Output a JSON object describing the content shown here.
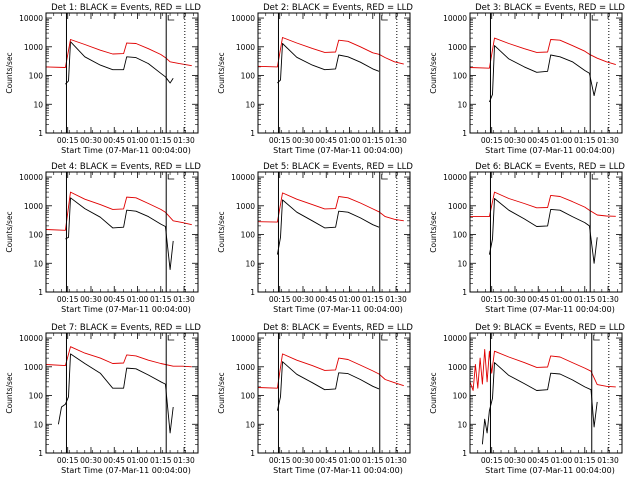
{
  "figure": {
    "shared": {
      "ylabel": "Counts/sec",
      "xlabel": "Start Time (07-Mar-11 00:04:00)",
      "xticklabels": [
        "00:15",
        "00:30",
        "00:45",
        "01:00",
        "01:15",
        "01:30"
      ],
      "yticklabels": [
        "1",
        "10",
        "100",
        "1000",
        "10000"
      ],
      "colors": {
        "events": "#000000",
        "lld": "#e00000",
        "axes": "#000000"
      }
    }
  },
  "chart_data": [
    {
      "type": "line",
      "panel": 1,
      "title": "Det 1: BLACK = Events, RED = LLD",
      "xlim_minutes_after_start": [
        0,
        98
      ],
      "ylim": [
        1,
        15000
      ],
      "yscale": "log",
      "grid": false,
      "vertical_lines_minutes": [
        13.2,
        77.5
      ],
      "dotted_lines_minutes": [
        89.5
      ],
      "series": [
        {
          "name": "Events",
          "color": "#000000",
          "x": [
            12.5,
            14.5,
            15.8,
            25,
            35,
            43,
            50,
            52,
            58,
            66,
            74,
            77,
            80,
            82
          ],
          "y": [
            50,
            65,
            1500,
            450,
            230,
            160,
            160,
            450,
            420,
            260,
            120,
            90,
            55,
            80
          ]
        },
        {
          "name": "LLD",
          "color": "#e00000",
          "x": [
            0,
            12.5,
            15.8,
            25,
            35,
            43,
            50,
            52,
            58,
            66,
            74,
            77,
            80,
            86,
            94
          ],
          "y": [
            200,
            190,
            1800,
            1200,
            760,
            560,
            580,
            1350,
            1300,
            860,
            540,
            420,
            300,
            260,
            220
          ]
        }
      ]
    },
    {
      "type": "line",
      "panel": 2,
      "title": "Det 2: BLACK = Events, RED = LLD",
      "xlim_minutes_after_start": [
        0,
        98
      ],
      "ylim": [
        1,
        15000
      ],
      "yscale": "log",
      "grid": false,
      "vertical_lines_minutes": [
        13.2,
        78.5
      ],
      "dotted_lines_minutes": [
        89.5
      ],
      "series": [
        {
          "name": "Events",
          "color": "#000000",
          "x": [
            12.5,
            14.5,
            15.8,
            25,
            35,
            43,
            50,
            52,
            58,
            66,
            74,
            78
          ],
          "y": [
            55,
            70,
            1300,
            430,
            230,
            160,
            170,
            520,
            450,
            290,
            170,
            140
          ]
        },
        {
          "name": "LLD",
          "color": "#e00000",
          "x": [
            0,
            12.5,
            15.8,
            25,
            35,
            43,
            50,
            52,
            58,
            66,
            74,
            78,
            82,
            88,
            94
          ],
          "y": [
            210,
            200,
            2100,
            1350,
            880,
            640,
            660,
            1700,
            1550,
            1000,
            620,
            550,
            420,
            300,
            250
          ]
        }
      ]
    },
    {
      "type": "line",
      "panel": 3,
      "title": "Det 3: BLACK = Events, RED = LLD",
      "xlim_minutes_after_start": [
        0,
        98
      ],
      "ylim": [
        1,
        15000
      ],
      "yscale": "log",
      "grid": false,
      "vertical_lines_minutes": [
        13.2,
        77.5
      ],
      "dotted_lines_minutes": [
        89.5
      ],
      "series": [
        {
          "name": "Events",
          "color": "#000000",
          "x": [
            12.5,
            14.5,
            15.8,
            25,
            35,
            43,
            50,
            52,
            58,
            66,
            74,
            77,
            80,
            82
          ],
          "y": [
            12,
            22,
            1100,
            380,
            200,
            130,
            140,
            520,
            450,
            300,
            150,
            120,
            20,
            60
          ]
        },
        {
          "name": "LLD",
          "color": "#e00000",
          "x": [
            0,
            12.5,
            15.8,
            25,
            35,
            43,
            50,
            52,
            58,
            66,
            74,
            77,
            82,
            88,
            94
          ],
          "y": [
            190,
            180,
            2000,
            1300,
            860,
            640,
            660,
            1800,
            1700,
            1100,
            700,
            550,
            400,
            300,
            240
          ]
        }
      ]
    },
    {
      "type": "line",
      "panel": 4,
      "title": "Det 4: BLACK = Events, RED = LLD",
      "xlim_minutes_after_start": [
        0,
        98
      ],
      "ylim": [
        1,
        15000
      ],
      "yscale": "log",
      "grid": false,
      "vertical_lines_minutes": [
        13.2,
        77.5
      ],
      "dotted_lines_minutes": [
        89.5
      ],
      "series": [
        {
          "name": "Events",
          "color": "#000000",
          "x": [
            12.5,
            14.5,
            15.8,
            25,
            35,
            43,
            50,
            52,
            58,
            66,
            74,
            77,
            80,
            82
          ],
          "y": [
            70,
            80,
            1900,
            800,
            400,
            170,
            180,
            700,
            650,
            420,
            230,
            190,
            6,
            60
          ]
        },
        {
          "name": "LLD",
          "color": "#e00000",
          "x": [
            0,
            12.5,
            15.8,
            25,
            35,
            43,
            50,
            52,
            58,
            66,
            74,
            77,
            82,
            88,
            94
          ],
          "y": [
            150,
            140,
            3000,
            1700,
            1100,
            750,
            780,
            2000,
            1900,
            1200,
            750,
            600,
            300,
            260,
            220
          ]
        }
      ]
    },
    {
      "type": "line",
      "panel": 5,
      "title": "Det 5: BLACK = Events, RED = LLD",
      "xlim_minutes_after_start": [
        0,
        98
      ],
      "ylim": [
        1,
        15000
      ],
      "yscale": "log",
      "grid": false,
      "vertical_lines_minutes": [
        13.2,
        78.5
      ],
      "dotted_lines_minutes": [
        89.5
      ],
      "series": [
        {
          "name": "Events",
          "color": "#000000",
          "x": [
            12.5,
            14.5,
            15.8,
            25,
            35,
            43,
            50,
            52,
            58,
            66,
            74,
            78
          ],
          "y": [
            20,
            80,
            1600,
            600,
            300,
            170,
            180,
            650,
            600,
            380,
            220,
            180
          ]
        },
        {
          "name": "LLD",
          "color": "#e00000",
          "x": [
            0,
            12.5,
            15.8,
            25,
            35,
            43,
            50,
            52,
            58,
            66,
            74,
            78,
            82,
            88,
            94
          ],
          "y": [
            280,
            270,
            2800,
            1700,
            1100,
            780,
            800,
            2100,
            1900,
            1250,
            780,
            620,
            420,
            340,
            300
          ]
        }
      ]
    },
    {
      "type": "line",
      "panel": 6,
      "title": "Det 6: BLACK = Events, RED = LLD",
      "xlim_minutes_after_start": [
        0,
        98
      ],
      "ylim": [
        1,
        15000
      ],
      "yscale": "log",
      "grid": false,
      "vertical_lines_minutes": [
        13.2,
        77.5
      ],
      "dotted_lines_minutes": [
        89.5
      ],
      "series": [
        {
          "name": "Events",
          "color": "#000000",
          "x": [
            12.5,
            14.5,
            15.8,
            25,
            35,
            43,
            50,
            52,
            58,
            66,
            74,
            77,
            80,
            82
          ],
          "y": [
            20,
            70,
            1800,
            700,
            350,
            190,
            200,
            750,
            700,
            420,
            260,
            200,
            10,
            80
          ]
        },
        {
          "name": "LLD",
          "color": "#e00000",
          "x": [
            0,
            12.5,
            15.8,
            25,
            35,
            43,
            50,
            52,
            58,
            66,
            74,
            77,
            82,
            88,
            94
          ],
          "y": [
            420,
            420,
            3000,
            1800,
            1200,
            850,
            870,
            2300,
            2100,
            1400,
            900,
            700,
            480,
            440,
            430
          ]
        }
      ]
    },
    {
      "type": "line",
      "panel": 7,
      "title": "Det 7: BLACK = Events, RED = LLD",
      "xlim_minutes_after_start": [
        0,
        98
      ],
      "ylim": [
        1,
        15000
      ],
      "yscale": "log",
      "grid": false,
      "vertical_lines_minutes": [
        13.2,
        77.5
      ],
      "dotted_lines_minutes": [
        89.5
      ],
      "series": [
        {
          "name": "Events",
          "color": "#000000",
          "x": [
            8,
            10,
            12.5,
            14.5,
            15.8,
            25,
            35,
            43,
            50,
            52,
            58,
            66,
            74,
            77,
            80,
            82
          ],
          "y": [
            10,
            40,
            50,
            90,
            2800,
            1300,
            600,
            180,
            180,
            900,
            850,
            520,
            300,
            250,
            5,
            40
          ]
        },
        {
          "name": "LLD",
          "color": "#e00000",
          "x": [
            0,
            12.5,
            15.8,
            25,
            35,
            43,
            50,
            52,
            58,
            66,
            74,
            77,
            82,
            88,
            94
          ],
          "y": [
            1200,
            1100,
            5000,
            3000,
            2000,
            1300,
            1350,
            2600,
            2400,
            1700,
            1300,
            1200,
            1050,
            1050,
            1000
          ]
        }
      ]
    },
    {
      "type": "line",
      "panel": 8,
      "title": "Det 8: BLACK = Events, RED = LLD",
      "xlim_minutes_after_start": [
        0,
        98
      ],
      "ylim": [
        1,
        15000
      ],
      "yscale": "log",
      "grid": false,
      "vertical_lines_minutes": [
        13.2,
        78.5
      ],
      "dotted_lines_minutes": [
        89.5
      ],
      "series": [
        {
          "name": "Events",
          "color": "#000000",
          "x": [
            12.5,
            14.5,
            15.8,
            25,
            35,
            43,
            50,
            52,
            58,
            66,
            74,
            78
          ],
          "y": [
            30,
            90,
            1500,
            550,
            280,
            160,
            170,
            620,
            580,
            360,
            210,
            170
          ]
        },
        {
          "name": "LLD",
          "color": "#e00000",
          "x": [
            0,
            12.5,
            15.8,
            25,
            35,
            43,
            50,
            52,
            58,
            66,
            74,
            78,
            82,
            88,
            94
          ],
          "y": [
            190,
            180,
            2800,
            1700,
            1100,
            750,
            780,
            2000,
            1800,
            1150,
            720,
            560,
            360,
            280,
            220
          ]
        }
      ]
    },
    {
      "type": "line",
      "panel": 9,
      "title": "Det 9: BLACK = Events, RED = LLD",
      "xlim_minutes_after_start": [
        0,
        98
      ],
      "ylim": [
        1,
        15000
      ],
      "yscale": "log",
      "grid": false,
      "vertical_lines_minutes": [
        13.2,
        78.5
      ],
      "dotted_lines_minutes": [
        89.5
      ],
      "series": [
        {
          "name": "Events",
          "color": "#000000",
          "x": [
            8,
            9.5,
            11,
            12.5,
            14.5,
            15.8,
            25,
            35,
            43,
            50,
            52,
            58,
            66,
            74,
            78,
            80,
            82
          ],
          "y": [
            2,
            15,
            5,
            30,
            80,
            1400,
            500,
            260,
            150,
            160,
            600,
            560,
            350,
            200,
            160,
            8,
            60
          ]
        },
        {
          "name": "LLD",
          "color": "#e00000",
          "x": [
            0,
            2,
            3.5,
            5,
            6.5,
            8,
            9.5,
            11,
            12.5,
            14,
            15.8,
            25,
            35,
            43,
            50,
            52,
            58,
            66,
            74,
            78,
            82,
            88,
            94
          ],
          "y": [
            300,
            150,
            1200,
            180,
            2000,
            250,
            4000,
            300,
            3500,
            600,
            3500,
            2200,
            1400,
            950,
            980,
            2400,
            2200,
            1400,
            900,
            700,
            240,
            210,
            200
          ]
        }
      ]
    }
  ]
}
